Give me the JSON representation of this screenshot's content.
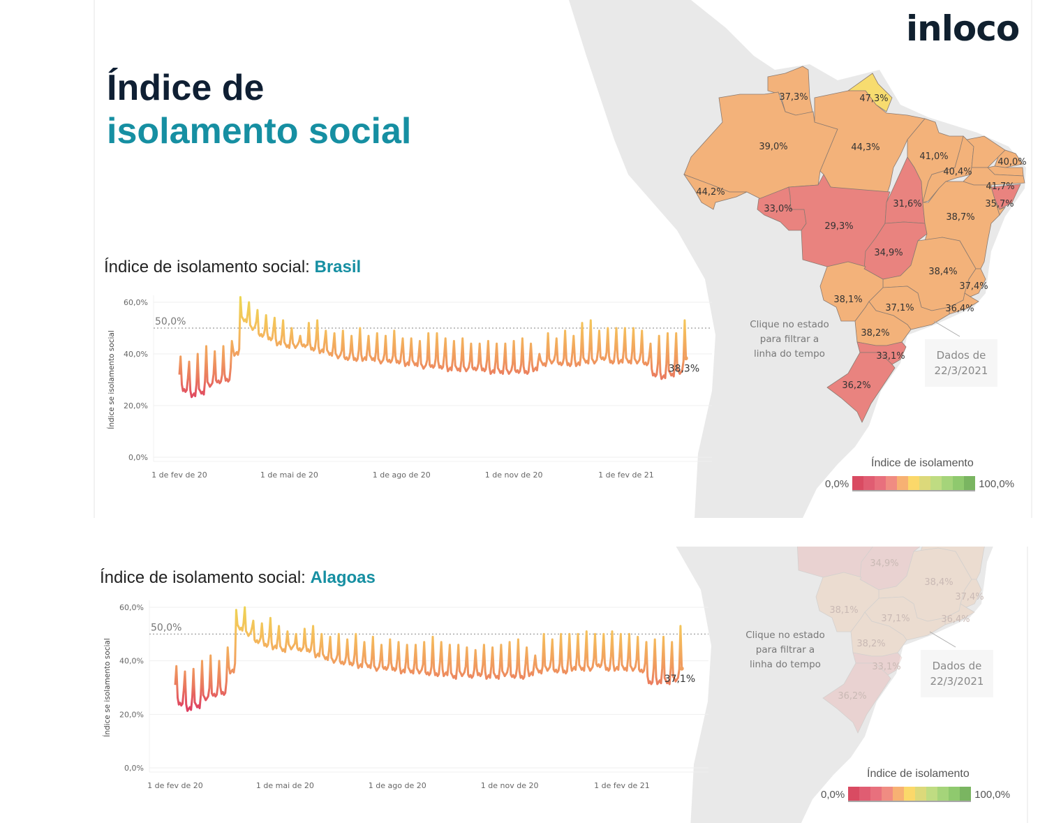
{
  "header": {
    "title_line1": "Índice de",
    "title_line2": "isolamento social",
    "logo": "inloco"
  },
  "colors": {
    "title_dark": "#0f1f33",
    "accent_teal": "#168fa2",
    "low_state": "#e9837f",
    "mid_state": "#f3b27a",
    "high_state": "#f7dc6f",
    "land_grey": "#e9e9e9"
  },
  "map": {
    "hint": [
      "Clique no estado",
      "para filtrar a",
      "linha do tempo"
    ],
    "data_date_line1": "Dados de",
    "data_date_line2": "22/3/2021",
    "states": [
      {
        "id": "RR",
        "value": "37,3%",
        "fill": "#f3b27a"
      },
      {
        "id": "AP",
        "value": "47,3%",
        "fill": "#f7dc6f"
      },
      {
        "id": "AM",
        "value": "39,0%",
        "fill": "#f3b27a"
      },
      {
        "id": "PA",
        "value": "44,3%",
        "fill": "#f3b27a"
      },
      {
        "id": "AC",
        "value": "44,2%",
        "fill": "#f3b27a"
      },
      {
        "id": "RO",
        "value": "33,0%",
        "fill": "#e9837f"
      },
      {
        "id": "MT",
        "value": "29,3%",
        "fill": "#e9837f"
      },
      {
        "id": "TO",
        "value": "31,6%",
        "fill": "#e9837f"
      },
      {
        "id": "GO",
        "value": "34,9%",
        "fill": "#e9837f"
      },
      {
        "id": "MA",
        "value": "41,0%",
        "fill": "#f3b27a"
      },
      {
        "id": "PI",
        "value": "40,4%",
        "fill": "#f3b27a"
      },
      {
        "id": "CE",
        "value": "40,0%",
        "fill": "#f3b27a"
      },
      {
        "id": "RN",
        "value": "",
        "fill": "#f3b27a"
      },
      {
        "id": "PB",
        "value": "",
        "fill": "#f3b27a"
      },
      {
        "id": "PE",
        "value": "41,7%",
        "fill": "#f3b27a"
      },
      {
        "id": "AL",
        "value": "35,7%",
        "fill": "#e9837f"
      },
      {
        "id": "SE",
        "value": "",
        "fill": "#f3b27a"
      },
      {
        "id": "BA",
        "value": "38,7%",
        "fill": "#f3b27a"
      },
      {
        "id": "MG",
        "value": "38,4%",
        "fill": "#f3b27a"
      },
      {
        "id": "ES",
        "value": "37,4%",
        "fill": "#f3b27a"
      },
      {
        "id": "RJ",
        "value": "36,4%",
        "fill": "#f3b27a"
      },
      {
        "id": "SP",
        "value": "37,1%",
        "fill": "#f3b27a"
      },
      {
        "id": "MS",
        "value": "38,1%",
        "fill": "#f3b27a"
      },
      {
        "id": "PR",
        "value": "38,2%",
        "fill": "#f3b27a"
      },
      {
        "id": "SC",
        "value": "33,1%",
        "fill": "#e9837f"
      },
      {
        "id": "RS",
        "value": "36,2%",
        "fill": "#e9837f"
      }
    ],
    "legend": {
      "title": "Índice de isolamento",
      "min_label": "0,0%",
      "max_label": "100,0%",
      "colors": [
        "#d94b62",
        "#e05d72",
        "#e8707d",
        "#f08c82",
        "#f7b173",
        "#fbd86a",
        "#dcd97a",
        "#bfdc82",
        "#a5d47a",
        "#8fc96e",
        "#7ab561"
      ]
    }
  },
  "chart_data": [
    {
      "type": "line",
      "title_prefix": "Índice de isolamento social: ",
      "title_region": "Brasil",
      "ylabel": "Índice se isolamento social",
      "ylim": [
        0,
        60
      ],
      "yticks": [
        "0,0%",
        "20,0%",
        "40,0%",
        "60,0%"
      ],
      "xticks": [
        "1 de fev de 20",
        "1 de mai de 20",
        "1 de ago de 20",
        "1 de nov de 20",
        "1 de fev de 21"
      ],
      "xtick_dates": [
        "2020-02-01",
        "2020-05-01",
        "2020-08-01",
        "2020-11-01",
        "2021-02-01"
      ],
      "x_range": [
        "2020-02-01",
        "2021-03-22"
      ],
      "reference_line": {
        "value": 50,
        "label": "50,0%"
      },
      "grid": true,
      "first_week_sunday": "2020-02-02",
      "weekday_level": [
        26,
        24,
        25,
        28,
        29,
        30,
        40,
        53,
        50,
        47,
        46,
        44,
        43,
        43,
        43,
        42,
        41,
        40,
        39,
        38,
        38,
        38,
        38,
        37,
        37,
        37,
        36,
        36,
        35,
        35,
        35,
        34,
        34,
        34,
        34,
        34,
        33,
        33,
        33,
        33,
        33,
        34,
        36,
        37,
        36,
        36,
        36,
        37,
        37,
        38,
        37,
        37,
        37,
        37,
        36,
        32,
        31,
        32,
        33,
        38
      ],
      "sunday_peak": [
        39,
        37,
        40,
        43,
        41,
        43,
        45,
        62,
        60,
        57,
        55,
        54,
        53,
        50,
        47,
        52,
        53,
        49,
        48,
        49,
        47,
        50,
        47,
        48,
        47,
        49,
        46,
        46,
        45,
        48,
        48,
        46,
        45,
        46,
        44,
        44,
        45,
        44,
        44,
        45,
        46,
        44,
        40,
        48,
        46,
        49,
        47,
        52,
        53,
        49,
        50,
        50,
        50,
        50,
        49,
        44,
        47,
        48,
        48,
        53
      ],
      "first_value": 32,
      "last_value": 38.3,
      "last_label": "38,3%"
    },
    {
      "type": "line",
      "title_prefix": "Índice de isolamento social: ",
      "title_region": "Alagoas",
      "ylabel": "Índice se isolamento social",
      "ylim": [
        0,
        60
      ],
      "yticks": [
        "0,0%",
        "20,0%",
        "40,0%",
        "60,0%"
      ],
      "xticks": [
        "1 de fev de 20",
        "1 de mai de 20",
        "1 de ago de 20",
        "1 de nov de 20",
        "1 de fev de 21"
      ],
      "xtick_dates": [
        "2020-02-01",
        "2020-05-01",
        "2020-08-01",
        "2020-11-01",
        "2021-02-01"
      ],
      "x_range": [
        "2020-02-01",
        "2021-03-22"
      ],
      "reference_line": {
        "value": 50,
        "label": "50,0%"
      },
      "grid": true,
      "first_week_sunday": "2020-02-02",
      "weekday_level": [
        24,
        22,
        23,
        26,
        27,
        28,
        36,
        52,
        50,
        47,
        46,
        45,
        44,
        45,
        44,
        44,
        42,
        41,
        40,
        39,
        39,
        38,
        38,
        37,
        37,
        37,
        36,
        36,
        36,
        35,
        35,
        35,
        34,
        35,
        34,
        35,
        34,
        34,
        35,
        34,
        34,
        35,
        36,
        37,
        36,
        36,
        37,
        37,
        37,
        38,
        37,
        37,
        37,
        37,
        36,
        32,
        32,
        32,
        33,
        37
      ],
      "sunday_peak": [
        38,
        36,
        37,
        40,
        42,
        40,
        45,
        59,
        60,
        55,
        54,
        56,
        53,
        51,
        50,
        52,
        53,
        50,
        49,
        50,
        48,
        50,
        47,
        49,
        46,
        48,
        47,
        46,
        46,
        47,
        49,
        47,
        46,
        46,
        45,
        44,
        46,
        45,
        46,
        47,
        48,
        45,
        42,
        50,
        48,
        50,
        50,
        50,
        51,
        50,
        50,
        51,
        50,
        50,
        49,
        47,
        48,
        49,
        47,
        53
      ],
      "first_value": 31,
      "last_value": 37.1,
      "last_label": "37,1%"
    }
  ]
}
